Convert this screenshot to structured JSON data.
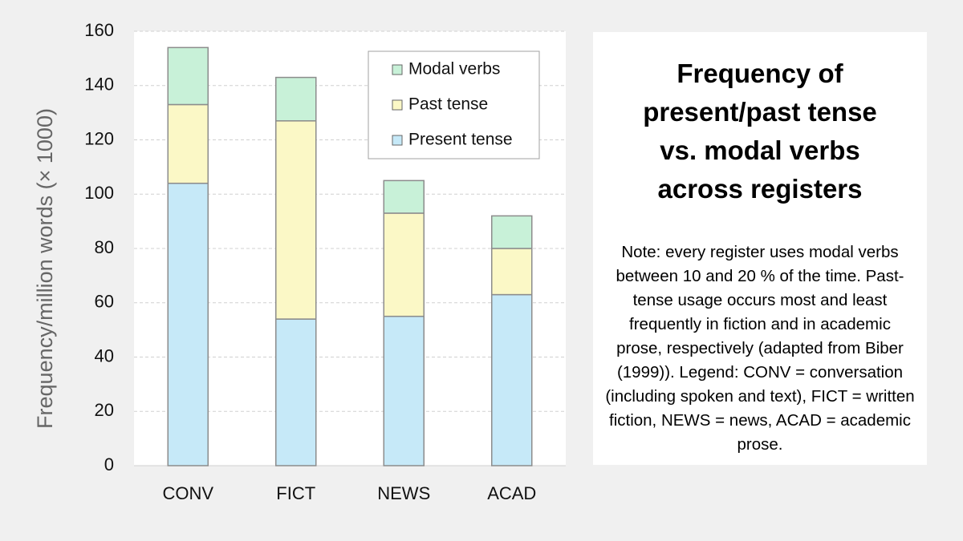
{
  "chart_data": {
    "type": "stacked_bar",
    "title": "Frequency of present/past tense vs. modal verbs across registers",
    "note": "Note: every register uses modal verbs between 10 and 20 % of the time. Past-tense usage occurs most and least frequently in fiction and in academic prose, respectively (adapted from Biber (1999)). Legend: CONV = conversation (including spoken and text), FICT = written fiction, NEWS = news, ACAD = academic prose.",
    "y_label": "Frequency/million words (× 1000)",
    "categories": [
      "CONV",
      "FICT",
      "NEWS",
      "ACAD"
    ],
    "series": [
      {
        "name": "Present tense",
        "color": "#c6e9f8",
        "values": [
          104,
          54,
          55,
          63
        ]
      },
      {
        "name": "Past tense",
        "color": "#fbf8c6",
        "values": [
          29,
          73,
          38,
          17
        ]
      },
      {
        "name": "Modal verbs",
        "color": "#c8f1d8",
        "values": [
          21,
          16,
          12,
          12
        ]
      }
    ],
    "ylim": [
      0,
      160
    ],
    "yticks": [
      0,
      20,
      40,
      60,
      80,
      100,
      120,
      140,
      160
    ],
    "grid": true,
    "legend": "upper right"
  }
}
